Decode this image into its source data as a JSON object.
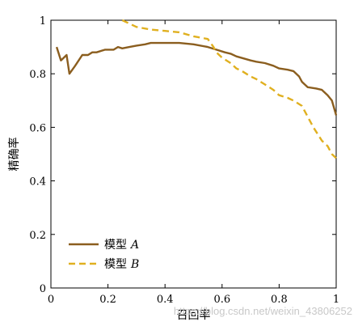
{
  "chart_data": {
    "type": "line",
    "xlabel": "召回率",
    "ylabel": "精确率",
    "xlim": [
      0,
      1
    ],
    "ylim": [
      0,
      1
    ],
    "xticks": [
      "0",
      "0.2",
      "0.4",
      "0.6",
      "0.8",
      "1"
    ],
    "yticks": [
      "0",
      "0.2",
      "0.4",
      "0.6",
      "0.8",
      "1"
    ],
    "legend_position": "bottom-left",
    "series": [
      {
        "name": "模型",
        "name_suffix": "A",
        "color": "#8b5e1f",
        "dash": "solid",
        "x": [
          0.02,
          0.035,
          0.055,
          0.065,
          0.085,
          0.11,
          0.13,
          0.145,
          0.16,
          0.19,
          0.22,
          0.235,
          0.25,
          0.275,
          0.3,
          0.33,
          0.35,
          0.4,
          0.45,
          0.5,
          0.55,
          0.58,
          0.61,
          0.63,
          0.65,
          0.7,
          0.72,
          0.75,
          0.78,
          0.8,
          0.83,
          0.85,
          0.87,
          0.88,
          0.9,
          0.93,
          0.95,
          0.97,
          0.985,
          1.0
        ],
        "y": [
          0.9,
          0.85,
          0.87,
          0.8,
          0.83,
          0.87,
          0.87,
          0.88,
          0.88,
          0.89,
          0.89,
          0.9,
          0.895,
          0.9,
          0.905,
          0.91,
          0.915,
          0.915,
          0.915,
          0.91,
          0.9,
          0.89,
          0.88,
          0.875,
          0.865,
          0.85,
          0.845,
          0.84,
          0.83,
          0.82,
          0.815,
          0.81,
          0.79,
          0.77,
          0.75,
          0.745,
          0.74,
          0.72,
          0.7,
          0.645
        ]
      },
      {
        "name": "模型",
        "name_suffix": "B",
        "color": "#e0b020",
        "dash": "dashed",
        "x": [
          0.25,
          0.27,
          0.3,
          0.35,
          0.4,
          0.45,
          0.5,
          0.55,
          0.57,
          0.58,
          0.6,
          0.63,
          0.65,
          0.67,
          0.7,
          0.72,
          0.75,
          0.78,
          0.8,
          0.83,
          0.85,
          0.88,
          0.9,
          0.92,
          0.95,
          0.97,
          0.985,
          1.0
        ],
        "y": [
          1.0,
          0.99,
          0.975,
          0.965,
          0.96,
          0.955,
          0.94,
          0.93,
          0.9,
          0.88,
          0.86,
          0.84,
          0.82,
          0.81,
          0.79,
          0.78,
          0.76,
          0.74,
          0.72,
          0.71,
          0.7,
          0.68,
          0.64,
          0.6,
          0.55,
          0.53,
          0.5,
          0.485
        ]
      }
    ]
  },
  "watermark": "https://blog.csdn.net/weixin_43806252"
}
